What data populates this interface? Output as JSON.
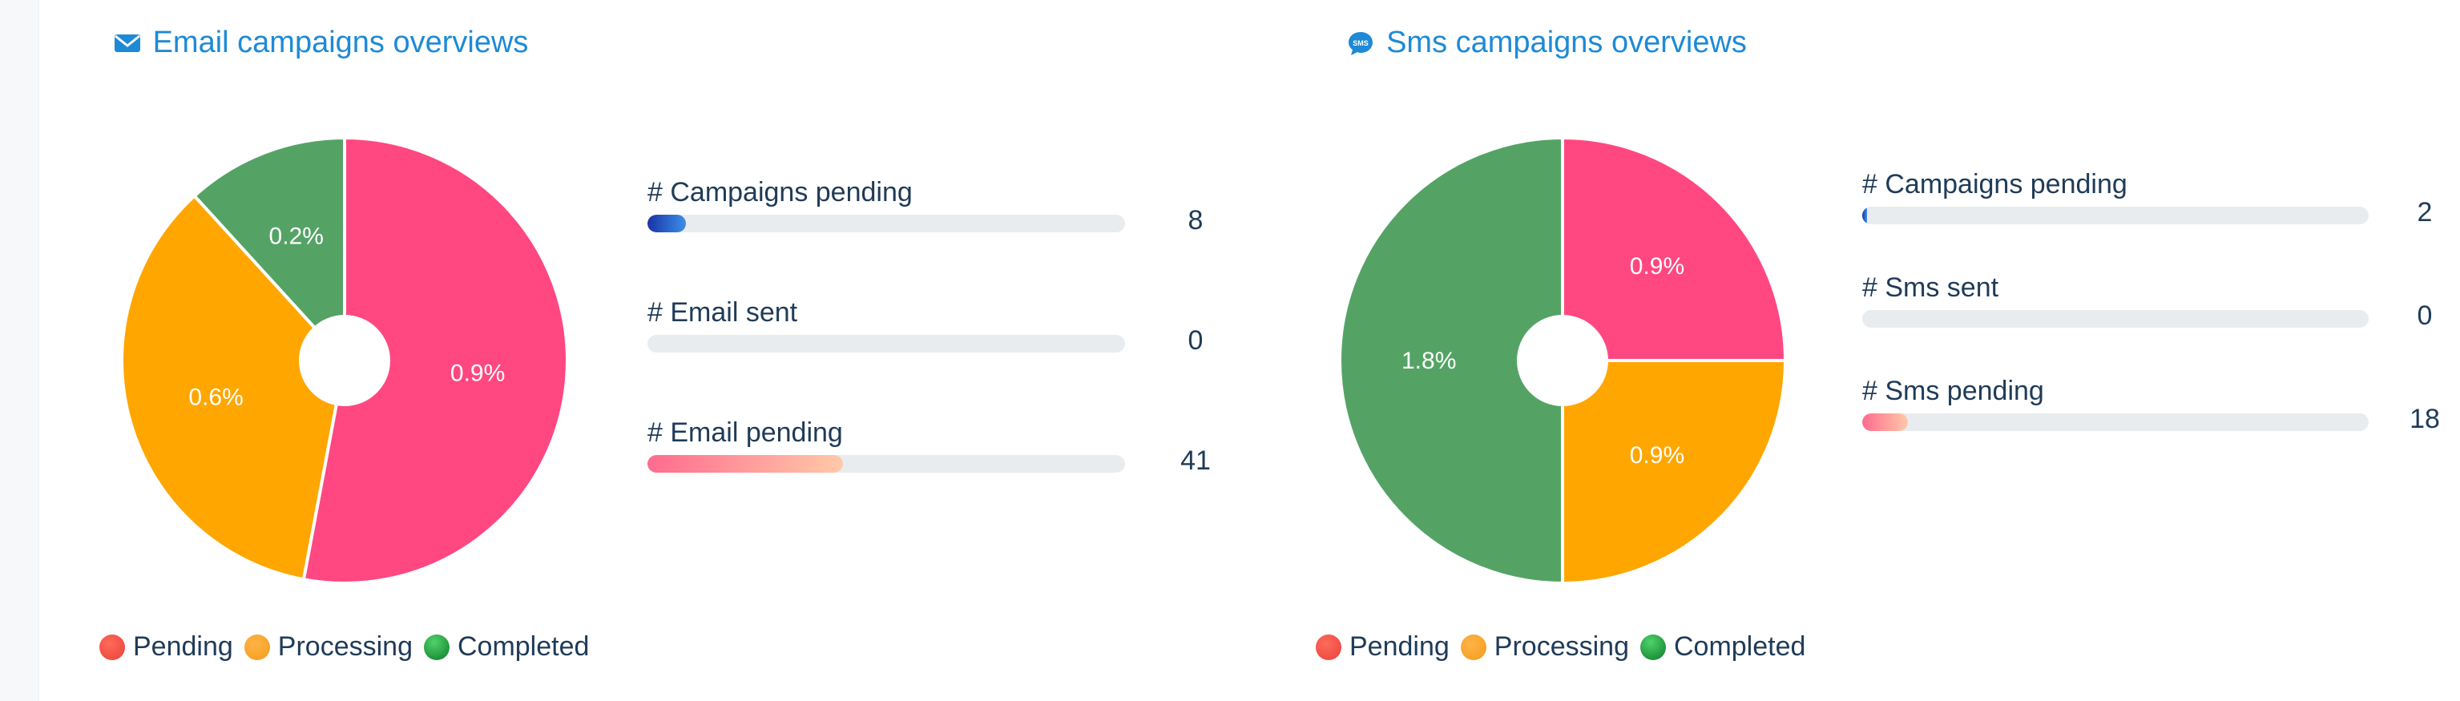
{
  "colors": {
    "pending": "#ff4781",
    "processing": "#ffa600",
    "completed": "#54a365",
    "title": "#1e8ad6"
  },
  "email": {
    "title": "Email campaigns overviews",
    "icon": "envelope-icon",
    "stats": [
      {
        "label": "# Campaigns pending",
        "value": "8",
        "fill_fraction": 0.08,
        "style": "blue"
      },
      {
        "label": "# Email sent",
        "value": "0",
        "fill_fraction": 0.0,
        "style": "blue"
      },
      {
        "label": "# Email pending",
        "value": "41",
        "fill_fraction": 0.41,
        "style": "pink"
      }
    ],
    "legend": [
      "Pending",
      "Processing",
      "Completed"
    ]
  },
  "sms": {
    "title": "Sms campaigns overviews",
    "icon": "sms-bubble-icon",
    "stats": [
      {
        "label": "# Campaigns pending",
        "value": "2",
        "fill_fraction": 0.01,
        "style": "blue"
      },
      {
        "label": "# Sms sent",
        "value": "0",
        "fill_fraction": 0.0,
        "style": "blue"
      },
      {
        "label": "# Sms pending",
        "value": "18",
        "fill_fraction": 0.09,
        "style": "pink"
      }
    ],
    "legend": [
      "Pending",
      "Processing",
      "Completed"
    ]
  },
  "chart_data": [
    {
      "type": "pie",
      "title": "Email campaigns overviews",
      "categories": [
        "Pending",
        "Processing",
        "Completed"
      ],
      "values": [
        0.9,
        0.6,
        0.2
      ],
      "labels": [
        "0.9%",
        "0.6%",
        "0.2%"
      ],
      "legend": "bottom",
      "donut_hole": true
    },
    {
      "type": "pie",
      "title": "Sms campaigns overviews",
      "categories": [
        "Pending",
        "Processing",
        "Completed"
      ],
      "values": [
        0.9,
        0.9,
        1.8
      ],
      "labels": [
        "0.9%",
        "0.9%",
        "1.8%"
      ],
      "legend": "bottom",
      "donut_hole": true
    }
  ]
}
